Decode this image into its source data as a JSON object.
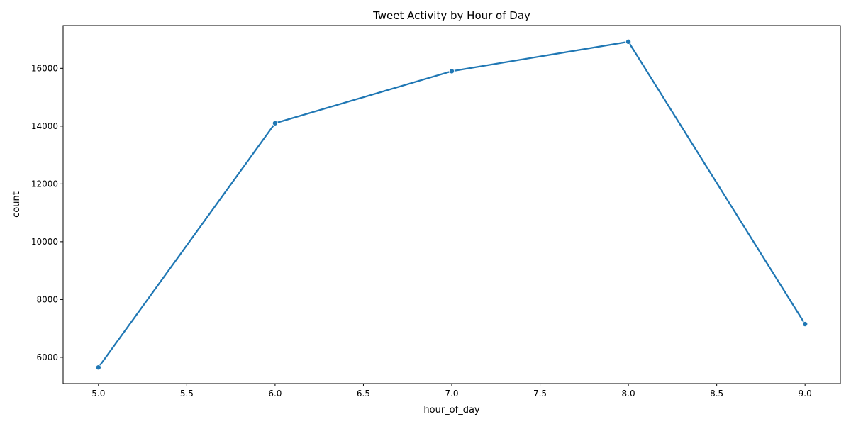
{
  "chart_data": {
    "type": "line",
    "title": "Tweet Activity by Hour of Day",
    "xlabel": "hour_of_day",
    "ylabel": "count",
    "x": [
      5.0,
      6.0,
      7.0,
      8.0,
      9.0
    ],
    "series": [
      {
        "values": [
          5650,
          14100,
          15900,
          16920,
          7150
        ],
        "color": "#1f77b4",
        "marker": "circle"
      }
    ],
    "xlim": [
      4.8,
      9.2
    ],
    "ylim": [
      5090,
      17480
    ],
    "x_ticks": [
      5.0,
      5.5,
      6.0,
      6.5,
      7.0,
      7.5,
      8.0,
      8.5,
      9.0
    ],
    "x_tick_labels": [
      "5.0",
      "5.5",
      "6.0",
      "6.5",
      "7.0",
      "7.5",
      "8.0",
      "8.5",
      "9.0"
    ],
    "y_ticks": [
      6000,
      8000,
      10000,
      12000,
      14000,
      16000
    ],
    "y_tick_labels": [
      "6000",
      "8000",
      "10000",
      "12000",
      "14000",
      "16000"
    ],
    "grid": false,
    "legend": "none"
  }
}
